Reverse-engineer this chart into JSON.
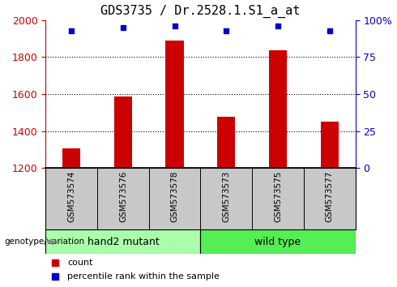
{
  "title": "GDS3735 / Dr.2528.1.S1_a_at",
  "samples": [
    "GSM573574",
    "GSM573576",
    "GSM573578",
    "GSM573573",
    "GSM573575",
    "GSM573577"
  ],
  "counts": [
    1305,
    1585,
    1890,
    1475,
    1835,
    1450
  ],
  "percentile_ranks": [
    93,
    95,
    96,
    93,
    96,
    93
  ],
  "ylim_left": [
    1200,
    2000
  ],
  "ylim_right": [
    0,
    100
  ],
  "yticks_left": [
    1200,
    1400,
    1600,
    1800,
    2000
  ],
  "yticks_right": [
    0,
    25,
    50,
    75,
    100
  ],
  "ytick_labels_right": [
    "0",
    "25",
    "50",
    "75",
    "100%"
  ],
  "bar_color": "#CC0000",
  "dot_color": "#0000CC",
  "background_color": "#ffffff",
  "plot_bg": "#ffffff",
  "tick_area_bg": "#C8C8C8",
  "groups": [
    {
      "label": "hand2 mutant",
      "indices": [
        0,
        1,
        2
      ],
      "color": "#AAFFAA"
    },
    {
      "label": "wild type",
      "indices": [
        3,
        4,
        5
      ],
      "color": "#55EE55"
    }
  ],
  "group_label": "genotype/variation",
  "legend_count": "count",
  "legend_percentile": "percentile rank within the sample",
  "bar_width": 0.35
}
